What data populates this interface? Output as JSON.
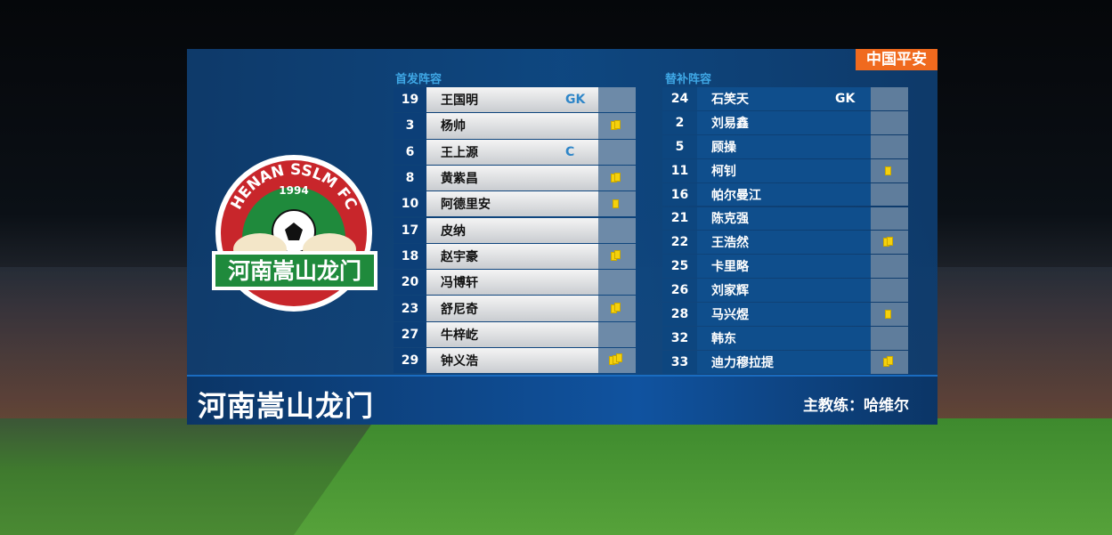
{
  "sponsor": "中国平安",
  "starters": {
    "title": "首发阵容",
    "players": [
      {
        "num": "19",
        "name": "王国明",
        "pos": "GK",
        "cards": 0
      },
      {
        "num": "3",
        "name": "杨帅",
        "pos": "",
        "cards": 2
      },
      {
        "num": "6",
        "name": "王上源",
        "pos": "C",
        "cards": 0
      },
      {
        "num": "8",
        "name": "黄紫昌",
        "pos": "",
        "cards": 2
      },
      {
        "num": "10",
        "name": "阿德里安",
        "pos": "",
        "cards": 1
      },
      {
        "num": "17",
        "name": "皮纳",
        "pos": "",
        "cards": 0
      },
      {
        "num": "18",
        "name": "赵宇豪",
        "pos": "",
        "cards": 2
      },
      {
        "num": "20",
        "name": "冯博轩",
        "pos": "",
        "cards": 0
      },
      {
        "num": "23",
        "name": "舒尼奇",
        "pos": "",
        "cards": 2
      },
      {
        "num": "27",
        "name": "牛梓屹",
        "pos": "",
        "cards": 0
      },
      {
        "num": "29",
        "name": "钟义浩",
        "pos": "",
        "cards": 3
      }
    ]
  },
  "subs": {
    "title": "替补阵容",
    "players": [
      {
        "num": "24",
        "name": "石笑天",
        "pos": "GK",
        "cards": 0
      },
      {
        "num": "2",
        "name": "刘易鑫",
        "pos": "",
        "cards": 0
      },
      {
        "num": "5",
        "name": "顾操",
        "pos": "",
        "cards": 0
      },
      {
        "num": "11",
        "name": "柯钊",
        "pos": "",
        "cards": 1
      },
      {
        "num": "16",
        "name": "帕尔曼江",
        "pos": "",
        "cards": 0
      },
      {
        "num": "21",
        "name": "陈克强",
        "pos": "",
        "cards": 0
      },
      {
        "num": "22",
        "name": "王浩然",
        "pos": "",
        "cards": 2
      },
      {
        "num": "25",
        "name": "卡里略",
        "pos": "",
        "cards": 0
      },
      {
        "num": "26",
        "name": "刘家辉",
        "pos": "",
        "cards": 0
      },
      {
        "num": "28",
        "name": "马兴煜",
        "pos": "",
        "cards": 1
      },
      {
        "num": "32",
        "name": "韩东",
        "pos": "",
        "cards": 0
      },
      {
        "num": "33",
        "name": "迪力穆拉提",
        "pos": "",
        "cards": 2
      }
    ]
  },
  "team_name": "河南嵩山龙门",
  "coach": "主教练：哈维尔",
  "logo": {
    "ring_text": "HENAN SSLM FC",
    "year": "1994",
    "banner": "河南嵩山龙门"
  },
  "colors": {
    "yellow_card": "#f5d10c",
    "panel": "#0f4a86",
    "sponsor": "#f06a1e"
  }
}
